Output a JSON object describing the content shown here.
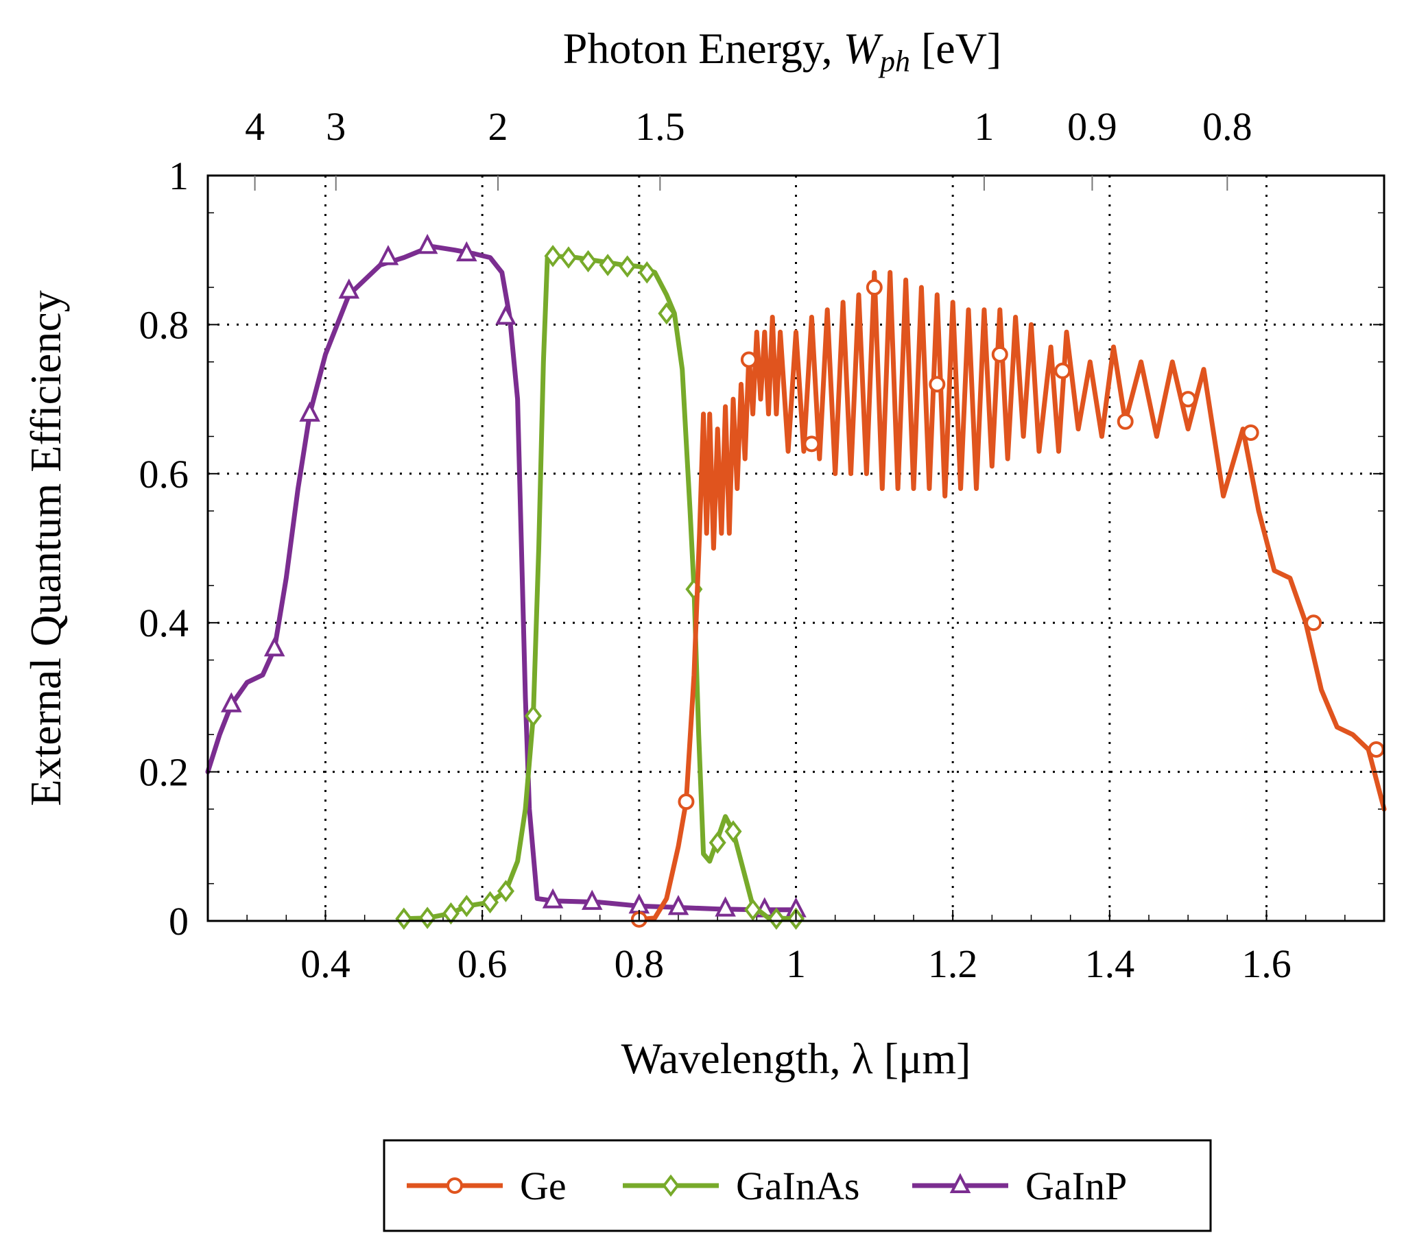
{
  "chart_data": {
    "type": "line",
    "title": "",
    "xlabel": "Wavelength, λ [μm]",
    "ylabel": "External Quantum Efficiency",
    "top_axis": {
      "label_prefix": "Photon Energy, ",
      "label_symbol": "W",
      "label_subscript": "ph",
      "label_unit": " [eV]",
      "ticks": [
        {
          "energy": 4,
          "label": "4"
        },
        {
          "energy": 3,
          "label": "3"
        },
        {
          "energy": 2,
          "label": "2"
        },
        {
          "energy": 1.5,
          "label": "1.5"
        },
        {
          "energy": 1,
          "label": "1"
        },
        {
          "energy": 0.9,
          "label": "0.9"
        },
        {
          "energy": 0.8,
          "label": "0.8"
        }
      ]
    },
    "xlim": [
      0.25,
      1.75
    ],
    "ylim": [
      0,
      1
    ],
    "x_ticks": [
      {
        "value": 0.4,
        "label": "0.4"
      },
      {
        "value": 0.6,
        "label": "0.6"
      },
      {
        "value": 0.8,
        "label": "0.8"
      },
      {
        "value": 1.0,
        "label": "1"
      },
      {
        "value": 1.2,
        "label": "1.2"
      },
      {
        "value": 1.4,
        "label": "1.4"
      },
      {
        "value": 1.6,
        "label": "1.6"
      }
    ],
    "y_ticks": [
      {
        "value": 0,
        "label": "0"
      },
      {
        "value": 0.2,
        "label": "0.2"
      },
      {
        "value": 0.4,
        "label": "0.4"
      },
      {
        "value": 0.6,
        "label": "0.6"
      },
      {
        "value": 0.8,
        "label": "0.8"
      },
      {
        "value": 1,
        "label": "1"
      }
    ],
    "grid": true,
    "legend_position": "bottom-center",
    "series": [
      {
        "name": "Ge",
        "color": "#e0541e",
        "marker": "circle",
        "points": [
          [
            0.8,
            0.002
          ],
          [
            0.82,
            0.004
          ],
          [
            0.835,
            0.03
          ],
          [
            0.85,
            0.1
          ],
          [
            0.86,
            0.16
          ],
          [
            0.87,
            0.33
          ],
          [
            0.877,
            0.52
          ],
          [
            0.882,
            0.68
          ],
          [
            0.886,
            0.52
          ],
          [
            0.89,
            0.68
          ],
          [
            0.895,
            0.5
          ],
          [
            0.9,
            0.66
          ],
          [
            0.905,
            0.52
          ],
          [
            0.91,
            0.69
          ],
          [
            0.915,
            0.52
          ],
          [
            0.92,
            0.7
          ],
          [
            0.925,
            0.58
          ],
          [
            0.93,
            0.72
          ],
          [
            0.935,
            0.62
          ],
          [
            0.94,
            0.76
          ],
          [
            0.945,
            0.68
          ],
          [
            0.95,
            0.79
          ],
          [
            0.955,
            0.7
          ],
          [
            0.96,
            0.79
          ],
          [
            0.965,
            0.68
          ],
          [
            0.97,
            0.81
          ],
          [
            0.975,
            0.68
          ],
          [
            0.98,
            0.79
          ],
          [
            0.99,
            0.63
          ],
          [
            1.0,
            0.79
          ],
          [
            1.01,
            0.63
          ],
          [
            1.02,
            0.81
          ],
          [
            1.03,
            0.62
          ],
          [
            1.04,
            0.82
          ],
          [
            1.05,
            0.6
          ],
          [
            1.06,
            0.83
          ],
          [
            1.07,
            0.6
          ],
          [
            1.08,
            0.84
          ],
          [
            1.09,
            0.6
          ],
          [
            1.1,
            0.87
          ],
          [
            1.11,
            0.58
          ],
          [
            1.12,
            0.87
          ],
          [
            1.13,
            0.58
          ],
          [
            1.14,
            0.86
          ],
          [
            1.15,
            0.58
          ],
          [
            1.16,
            0.85
          ],
          [
            1.17,
            0.58
          ],
          [
            1.18,
            0.84
          ],
          [
            1.19,
            0.57
          ],
          [
            1.2,
            0.83
          ],
          [
            1.21,
            0.58
          ],
          [
            1.22,
            0.82
          ],
          [
            1.23,
            0.58
          ],
          [
            1.24,
            0.82
          ],
          [
            1.25,
            0.61
          ],
          [
            1.26,
            0.82
          ],
          [
            1.27,
            0.62
          ],
          [
            1.28,
            0.81
          ],
          [
            1.29,
            0.65
          ],
          [
            1.3,
            0.8
          ],
          [
            1.31,
            0.63
          ],
          [
            1.325,
            0.77
          ],
          [
            1.335,
            0.63
          ],
          [
            1.345,
            0.79
          ],
          [
            1.36,
            0.66
          ],
          [
            1.375,
            0.75
          ],
          [
            1.39,
            0.65
          ],
          [
            1.405,
            0.77
          ],
          [
            1.42,
            0.67
          ],
          [
            1.44,
            0.75
          ],
          [
            1.46,
            0.65
          ],
          [
            1.48,
            0.75
          ],
          [
            1.5,
            0.66
          ],
          [
            1.52,
            0.74
          ],
          [
            1.545,
            0.57
          ],
          [
            1.57,
            0.66
          ],
          [
            1.59,
            0.55
          ],
          [
            1.61,
            0.47
          ],
          [
            1.63,
            0.46
          ],
          [
            1.65,
            0.4
          ],
          [
            1.67,
            0.31
          ],
          [
            1.69,
            0.26
          ],
          [
            1.71,
            0.25
          ],
          [
            1.73,
            0.23
          ],
          [
            1.75,
            0.15
          ]
        ],
        "marker_points": [
          [
            0.8,
            0.002
          ],
          [
            0.86,
            0.16
          ],
          [
            0.94,
            0.753
          ],
          [
            1.02,
            0.64
          ],
          [
            1.1,
            0.85
          ],
          [
            1.18,
            0.72
          ],
          [
            1.26,
            0.76
          ],
          [
            1.34,
            0.738
          ],
          [
            1.42,
            0.67
          ],
          [
            1.5,
            0.7
          ],
          [
            1.58,
            0.655
          ],
          [
            1.66,
            0.4
          ],
          [
            1.74,
            0.23
          ]
        ]
      },
      {
        "name": "GaInAs",
        "color": "#77aa2a",
        "marker": "diamond",
        "points": [
          [
            0.5,
            0.003
          ],
          [
            0.53,
            0.004
          ],
          [
            0.56,
            0.01
          ],
          [
            0.58,
            0.02
          ],
          [
            0.61,
            0.025
          ],
          [
            0.63,
            0.04
          ],
          [
            0.645,
            0.08
          ],
          [
            0.655,
            0.15
          ],
          [
            0.665,
            0.275
          ],
          [
            0.672,
            0.5
          ],
          [
            0.678,
            0.75
          ],
          [
            0.683,
            0.89
          ],
          [
            0.69,
            0.892
          ],
          [
            0.72,
            0.89
          ],
          [
            0.75,
            0.885
          ],
          [
            0.78,
            0.88
          ],
          [
            0.8,
            0.878
          ],
          [
            0.82,
            0.87
          ],
          [
            0.835,
            0.84
          ],
          [
            0.845,
            0.815
          ],
          [
            0.855,
            0.74
          ],
          [
            0.865,
            0.55
          ],
          [
            0.87,
            0.445
          ],
          [
            0.876,
            0.25
          ],
          [
            0.882,
            0.09
          ],
          [
            0.89,
            0.08
          ],
          [
            0.9,
            0.11
          ],
          [
            0.91,
            0.14
          ],
          [
            0.92,
            0.12
          ],
          [
            0.935,
            0.06
          ],
          [
            0.945,
            0.02
          ],
          [
            0.965,
            0.004
          ],
          [
            1.0,
            0.003
          ]
        ],
        "marker_points": [
          [
            0.5,
            0.003
          ],
          [
            0.53,
            0.004
          ],
          [
            0.56,
            0.01
          ],
          [
            0.58,
            0.02
          ],
          [
            0.61,
            0.025
          ],
          [
            0.63,
            0.04
          ],
          [
            0.665,
            0.275
          ],
          [
            0.69,
            0.892
          ],
          [
            0.71,
            0.89
          ],
          [
            0.735,
            0.885
          ],
          [
            0.76,
            0.88
          ],
          [
            0.785,
            0.878
          ],
          [
            0.81,
            0.87
          ],
          [
            0.835,
            0.815
          ],
          [
            0.87,
            0.445
          ],
          [
            0.9,
            0.105
          ],
          [
            0.92,
            0.12
          ],
          [
            0.945,
            0.015
          ],
          [
            0.975,
            0.003
          ],
          [
            1.0,
            0.003
          ]
        ]
      },
      {
        "name": "GaInP",
        "color": "#7b2d90",
        "marker": "triangle",
        "points": [
          [
            0.25,
            0.2
          ],
          [
            0.265,
            0.25
          ],
          [
            0.28,
            0.29
          ],
          [
            0.3,
            0.32
          ],
          [
            0.32,
            0.33
          ],
          [
            0.335,
            0.365
          ],
          [
            0.35,
            0.46
          ],
          [
            0.365,
            0.58
          ],
          [
            0.38,
            0.68
          ],
          [
            0.4,
            0.76
          ],
          [
            0.43,
            0.84
          ],
          [
            0.47,
            0.88
          ],
          [
            0.5,
            0.89
          ],
          [
            0.535,
            0.905
          ],
          [
            0.565,
            0.9
          ],
          [
            0.59,
            0.895
          ],
          [
            0.61,
            0.89
          ],
          [
            0.625,
            0.87
          ],
          [
            0.635,
            0.81
          ],
          [
            0.645,
            0.7
          ],
          [
            0.65,
            0.5
          ],
          [
            0.655,
            0.3
          ],
          [
            0.66,
            0.15
          ],
          [
            0.67,
            0.03
          ],
          [
            0.69,
            0.027
          ],
          [
            0.75,
            0.025
          ],
          [
            0.8,
            0.02
          ],
          [
            0.85,
            0.018
          ],
          [
            0.9,
            0.016
          ],
          [
            0.95,
            0.015
          ],
          [
            1.0,
            0.015
          ]
        ],
        "marker_points": [
          [
            0.28,
            0.29
          ],
          [
            0.335,
            0.365
          ],
          [
            0.38,
            0.68
          ],
          [
            0.43,
            0.845
          ],
          [
            0.48,
            0.89
          ],
          [
            0.53,
            0.905
          ],
          [
            0.58,
            0.895
          ],
          [
            0.63,
            0.81
          ],
          [
            0.69,
            0.027
          ],
          [
            0.74,
            0.025
          ],
          [
            0.8,
            0.02
          ],
          [
            0.85,
            0.018
          ],
          [
            0.91,
            0.016
          ],
          [
            0.96,
            0.015
          ],
          [
            1.0,
            0.015
          ]
        ]
      }
    ]
  }
}
